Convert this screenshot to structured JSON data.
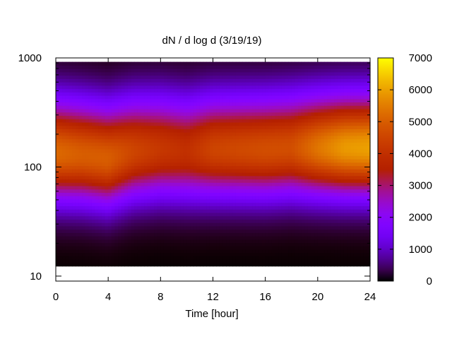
{
  "chart_data": {
    "type": "heatmap",
    "title": "dN / d log d (3/19/19)",
    "xlabel": "Time [hour]",
    "ylabel": "",
    "xlim": [
      0,
      24
    ],
    "ylim": [
      9,
      1000
    ],
    "y_scale": "log",
    "x_ticks": [
      0,
      4,
      8,
      12,
      16,
      20,
      24
    ],
    "x_tick_labels": [
      "0",
      "4",
      "8",
      "12",
      "16",
      "20",
      "24"
    ],
    "y_ticks": [
      10,
      100,
      1000
    ],
    "y_tick_labels": [
      "10",
      "100",
      "1000"
    ],
    "colorbar": {
      "range": [
        0,
        7000
      ],
      "ticks": [
        0,
        1000,
        2000,
        3000,
        4000,
        5000,
        6000,
        7000
      ],
      "tick_labels": [
        "0",
        "1000",
        "2000",
        "3000",
        "4000",
        "5000",
        "6000",
        "7000"
      ],
      "palette": "gnuplot (black-purple-red-orange-yellow)"
    },
    "peak_profile": {
      "time_hours": [
        0,
        2,
        4,
        6,
        8,
        10,
        12,
        14,
        16,
        18,
        20,
        22,
        24
      ],
      "peak_diameter": [
        135,
        130,
        120,
        140,
        145,
        140,
        145,
        145,
        145,
        150,
        150,
        150,
        150
      ],
      "peak_value": [
        5200,
        5000,
        5000,
        4500,
        4200,
        4000,
        4500,
        4600,
        4700,
        4700,
        5400,
        5900,
        6000
      ]
    },
    "grid": false,
    "legend": "colorbar right"
  }
}
